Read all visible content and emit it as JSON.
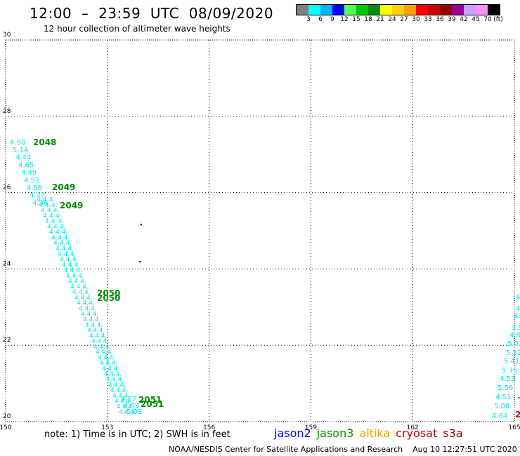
{
  "title": "12:00  –  23:59  UTC  08/09/2020",
  "subtitle": "12 hour collection of altimeter wave heights",
  "colorbar": {
    "colors": [
      "#7f7f7f",
      "#00ffff",
      "#00b4ff",
      "#0000ff",
      "#50ff50",
      "#00c800",
      "#008c00",
      "#ffff00",
      "#ffd200",
      "#ffa000",
      "#ff0000",
      "#c80000",
      "#960000",
      "#960096",
      "#c8a0ff",
      "#ff90ff",
      "#000000"
    ],
    "labels": [
      "3",
      "6",
      "9",
      "12",
      "15",
      "18",
      "21",
      "24",
      "27",
      "30",
      "33",
      "36",
      "39",
      "42",
      "45",
      "70",
      "(ft)"
    ]
  },
  "axes": {
    "x_ticks": [
      "150",
      "153",
      "156",
      "159",
      "162",
      "165"
    ],
    "y_ticks": [
      "30",
      "28",
      "26",
      "24",
      "22",
      "20"
    ],
    "x_range": [
      150,
      165
    ],
    "y_range": [
      20,
      30
    ]
  },
  "tracks": {
    "main_labels": [
      "4.90",
      "5.14",
      "4.44",
      "4.65",
      "4.49",
      "4.52",
      "4.58",
      "4.47",
      "4.36"
    ],
    "east_labels": [
      "4.",
      "4.",
      "4.",
      "3.9",
      "4.8",
      "5.02",
      "5.32",
      "5.41",
      "5.35",
      "4.53",
      "5.56",
      "4.51",
      "5.08",
      "4.64"
    ],
    "bottom_labels": [
      "4.17",
      "4.49",
      "5.09"
    ],
    "passes": [
      "2048",
      "2049",
      "2049",
      "2050",
      "2050",
      "2051",
      "2051"
    ],
    "east_pass": "2"
  },
  "footer": {
    "note": "note:  1) Time is in UTC;  2) SWH is in feet",
    "credit": "NOAA/NESDIS Center for Satellite Applications and Research    Aug 10 12:27:51 UTC 2020",
    "legend": [
      {
        "name": "jason2",
        "color": "#0000ff"
      },
      {
        "name": "jason3",
        "color": "#008c00"
      },
      {
        "name": "altika",
        "color": "#ffa000"
      },
      {
        "name": "cryosat",
        "color": "#c80000"
      },
      {
        "name": "s3a",
        "color": "#960000"
      }
    ]
  }
}
